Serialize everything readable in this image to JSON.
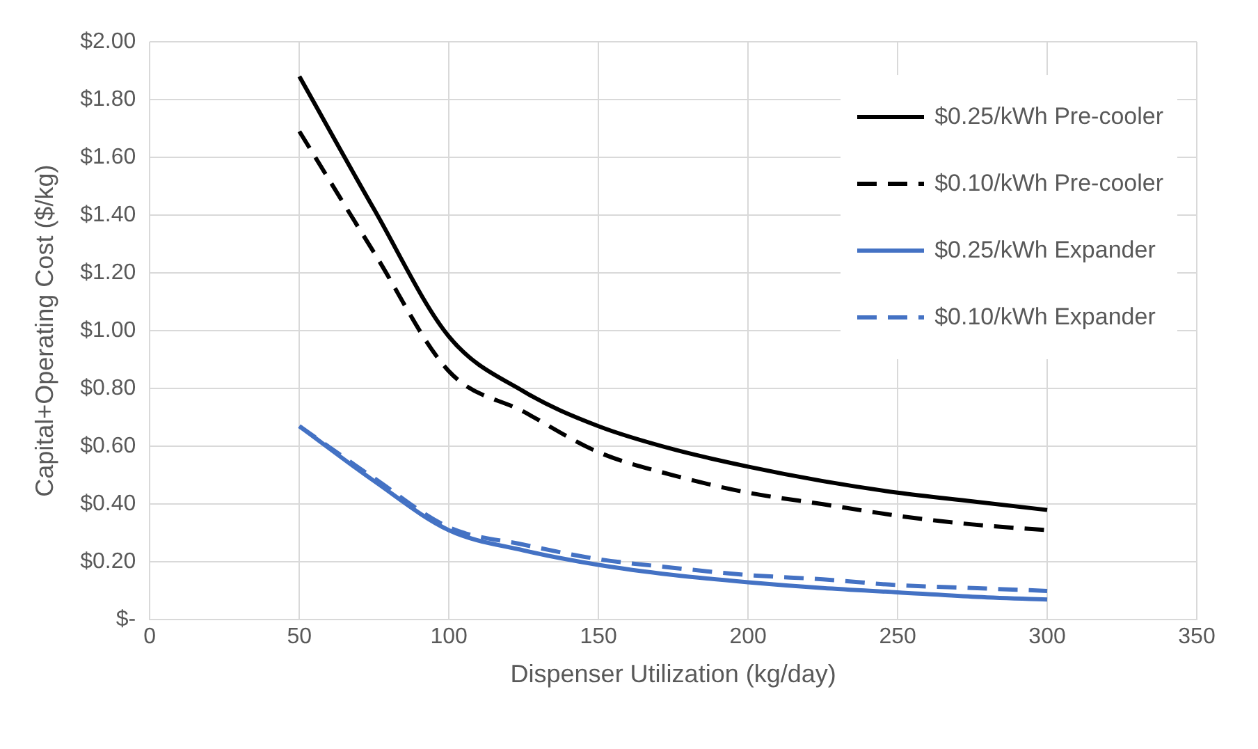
{
  "chart_data": {
    "type": "line",
    "xlabel": "Dispenser Utilization (kg/day)",
    "ylabel": "Capital+Operating Cost ($/kg)",
    "xlim": [
      0,
      350
    ],
    "xticks": [
      0,
      50,
      100,
      150,
      200,
      250,
      300,
      350
    ],
    "ylim": [
      0,
      2
    ],
    "yticks": [
      {
        "value": 0,
        "label": "$-"
      },
      {
        "value": 0.2,
        "label": "$0.20"
      },
      {
        "value": 0.4,
        "label": "$0.40"
      },
      {
        "value": 0.6,
        "label": "$0.60"
      },
      {
        "value": 0.8,
        "label": "$0.80"
      },
      {
        "value": 1,
        "label": "$1.00"
      },
      {
        "value": 1.2,
        "label": "$1.20"
      },
      {
        "value": 1.4,
        "label": "$1.40"
      },
      {
        "value": 1.6,
        "label": "$1.60"
      },
      {
        "value": 1.8,
        "label": "$1.80"
      },
      {
        "value": 2,
        "label": "$2.00"
      }
    ],
    "grid": true,
    "legend": "top right",
    "marker": "none",
    "x": [
      50,
      75,
      100,
      125,
      150,
      175,
      200,
      225,
      250,
      275,
      300
    ],
    "series": [
      {
        "name": "$0.25/kWh Pre-cooler",
        "color": "#000000",
        "line_style": "solid",
        "values": [
          1.88,
          1.42,
          0.98,
          0.79,
          0.67,
          0.59,
          0.53,
          0.48,
          0.44,
          0.41,
          0.38
        ]
      },
      {
        "name": "$0.10/kWh Pre-cooler",
        "color": "#000000",
        "line_style": "dashed",
        "values": [
          1.69,
          1.27,
          0.86,
          0.72,
          0.58,
          0.5,
          0.44,
          0.4,
          0.36,
          0.33,
          0.31
        ]
      },
      {
        "name": "$0.25/kWh Expander",
        "color": "#4472c4",
        "line_style": "solid",
        "values": [
          0.67,
          0.48,
          0.31,
          0.24,
          0.19,
          0.155,
          0.13,
          0.11,
          0.095,
          0.08,
          0.07
        ]
      },
      {
        "name": "$0.10/kWh Expander",
        "color": "#4472c4",
        "line_style": "dashed",
        "values": [
          0.67,
          0.49,
          0.32,
          0.26,
          0.21,
          0.18,
          0.155,
          0.14,
          0.12,
          0.11,
          0.1
        ]
      }
    ]
  }
}
